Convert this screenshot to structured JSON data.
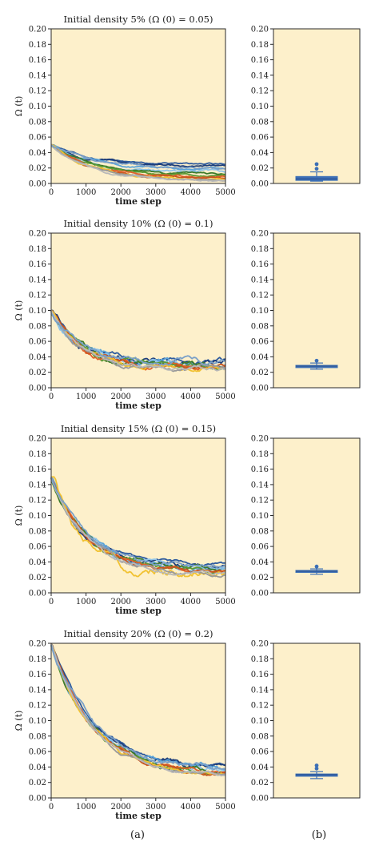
{
  "figure": {
    "panel_label_a": "(a)",
    "panel_label_b": "(b)",
    "colors": {
      "plot_background": "#fdf0cb",
      "axis": "#2a2a2a",
      "box_fill": "#3c6fb6",
      "flier": "#3c6fb6",
      "series_palette": [
        "#2e5b9e",
        "#1f3f7a",
        "#5ba4d9",
        "#8fc3e8",
        "#3d7a2a",
        "#5c9a35",
        "#e0612a",
        "#c9551f",
        "#f1c232",
        "#9a9a9a",
        "#b8b8b8",
        "#7aa0c8"
      ]
    }
  },
  "chart_data": [
    {
      "type": "line",
      "title": "Initial density 5% (Ω (0) = 0.05)",
      "xlabel": "time step",
      "ylabel": "Ω (t)",
      "xlim": [
        0,
        5000
      ],
      "ylim": [
        0,
        0.2
      ],
      "xticks": [
        "0",
        "1000",
        "2000",
        "3000",
        "4000",
        "5000"
      ],
      "yticks": [
        "0.00",
        "0.02",
        "0.04",
        "0.06",
        "0.08",
        "0.10",
        "0.12",
        "0.14",
        "0.16",
        "0.18",
        "0.20"
      ],
      "initial_value": 0.05,
      "series_final_values": [
        0.025,
        0.022,
        0.018,
        0.015,
        0.012,
        0.01,
        0.008,
        0.006,
        0.005,
        0.004,
        0.003,
        0.02
      ],
      "series_peak_values": [
        0.03,
        0.028,
        0.024,
        0.022,
        0.018,
        0.016,
        0.014,
        0.012,
        0.01,
        0.009,
        0.008,
        0.026
      ]
    },
    {
      "type": "box",
      "yticks": [
        "0.00",
        "0.02",
        "0.04",
        "0.06",
        "0.08",
        "0.10",
        "0.12",
        "0.14",
        "0.16",
        "0.18",
        "0.20"
      ],
      "ylim": [
        0,
        0.2
      ],
      "whisker_low": 0.003,
      "q1": 0.004,
      "median": 0.006,
      "q3": 0.009,
      "whisker_high": 0.015,
      "outliers": [
        0.019,
        0.025
      ]
    },
    {
      "type": "line",
      "title": "Initial density 10% (Ω (0) = 0.1)",
      "xlabel": "time step",
      "ylabel": "Ω (t)",
      "xlim": [
        0,
        5000
      ],
      "ylim": [
        0,
        0.2
      ],
      "xticks": [
        "0",
        "1000",
        "2000",
        "3000",
        "4000",
        "5000"
      ],
      "yticks": [
        "0.00",
        "0.02",
        "0.04",
        "0.06",
        "0.08",
        "0.10",
        "0.12",
        "0.14",
        "0.16",
        "0.18",
        "0.20"
      ],
      "initial_value": 0.1,
      "series_final_values": [
        0.034,
        0.032,
        0.03,
        0.029,
        0.028,
        0.027,
        0.026,
        0.025,
        0.025,
        0.024,
        0.023,
        0.033
      ],
      "series_peak_values": [
        0.05,
        0.055,
        0.052,
        0.048,
        0.045,
        0.044,
        0.042,
        0.04,
        0.038,
        0.036,
        0.035,
        0.05
      ]
    },
    {
      "type": "box",
      "yticks": [
        "0.00",
        "0.02",
        "0.04",
        "0.06",
        "0.08",
        "0.10",
        "0.12",
        "0.14",
        "0.16",
        "0.18",
        "0.20"
      ],
      "ylim": [
        0,
        0.2
      ],
      "whisker_low": 0.024,
      "q1": 0.026,
      "median": 0.028,
      "q3": 0.029,
      "whisker_high": 0.032,
      "outliers": [
        0.035
      ]
    },
    {
      "type": "line",
      "title": "Initial density 15% (Ω (0) = 0.15)",
      "xlabel": "time step",
      "ylabel": "Ω (t)",
      "xlim": [
        0,
        5000
      ],
      "ylim": [
        0,
        0.2
      ],
      "xticks": [
        "0",
        "1000",
        "2000",
        "3000",
        "4000",
        "5000"
      ],
      "yticks": [
        "0.00",
        "0.02",
        "0.04",
        "0.06",
        "0.08",
        "0.10",
        "0.12",
        "0.14",
        "0.16",
        "0.18",
        "0.20"
      ],
      "initial_value": 0.15,
      "series_final_values": [
        0.036,
        0.033,
        0.031,
        0.03,
        0.029,
        0.028,
        0.027,
        0.026,
        0.025,
        0.024,
        0.024,
        0.032
      ],
      "series_peak_values": [
        0.045,
        0.05,
        0.047,
        0.045,
        0.044,
        0.042,
        0.04,
        0.039,
        0.058,
        0.036,
        0.035,
        0.046
      ]
    },
    {
      "type": "box",
      "yticks": [
        "0.00",
        "0.02",
        "0.04",
        "0.06",
        "0.08",
        "0.10",
        "0.12",
        "0.14",
        "0.16",
        "0.18",
        "0.20"
      ],
      "ylim": [
        0,
        0.2
      ],
      "whisker_low": 0.024,
      "q1": 0.027,
      "median": 0.028,
      "q3": 0.029,
      "whisker_high": 0.031,
      "outliers": [
        0.034
      ]
    },
    {
      "type": "line",
      "title": "Initial density 20% (Ω (0) = 0.2)",
      "xlabel": "time step",
      "ylabel": "Ω (t)",
      "xlim": [
        0,
        5000
      ],
      "ylim": [
        0,
        0.2
      ],
      "xticks": [
        "0",
        "1000",
        "2000",
        "3000",
        "4000",
        "5000"
      ],
      "yticks": [
        "0.00",
        "0.02",
        "0.04",
        "0.06",
        "0.08",
        "0.10",
        "0.12",
        "0.14",
        "0.16",
        "0.18",
        "0.20"
      ],
      "initial_value": 0.2,
      "series_final_values": [
        0.04,
        0.037,
        0.035,
        0.033,
        0.032,
        0.031,
        0.03,
        0.029,
        0.028,
        0.028,
        0.027,
        0.036
      ],
      "series_peak_values": [
        0.05,
        0.055,
        0.052,
        0.05,
        0.048,
        0.045,
        0.044,
        0.042,
        0.04,
        0.038,
        0.036,
        0.052
      ]
    },
    {
      "type": "box",
      "yticks": [
        "0.00",
        "0.02",
        "0.04",
        "0.06",
        "0.08",
        "0.10",
        "0.12",
        "0.14",
        "0.16",
        "0.18",
        "0.20"
      ],
      "ylim": [
        0,
        0.2
      ],
      "whisker_low": 0.025,
      "q1": 0.028,
      "median": 0.03,
      "q3": 0.031,
      "whisker_high": 0.034,
      "outliers": [
        0.038,
        0.042
      ]
    }
  ]
}
